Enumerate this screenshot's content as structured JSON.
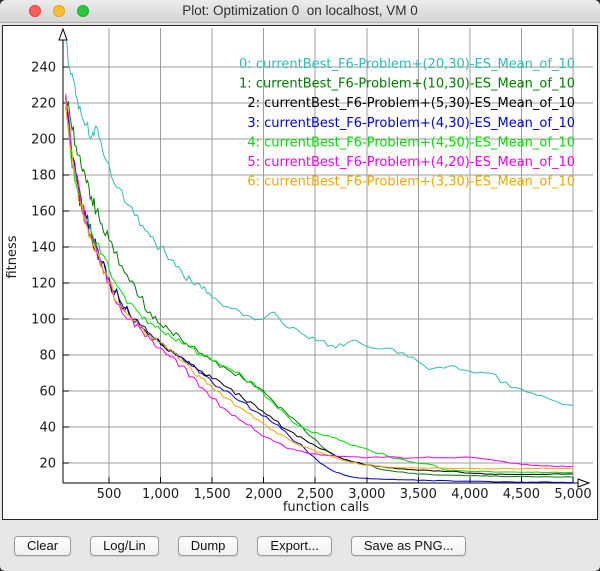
{
  "window": {
    "title": "Plot: Optimization 0  on localhost, VM 0"
  },
  "chart_data": {
    "type": "line",
    "title": "",
    "xlabel": "function calls",
    "ylabel": "fitness",
    "xlim": [
      50,
      5100
    ],
    "ylim": [
      9,
      260
    ],
    "grid": true,
    "grid_color": "#9d9d9d",
    "background": "#ffffff",
    "legend_position": "top-right",
    "xticks": [
      500,
      1000,
      1500,
      2000,
      2500,
      3000,
      3500,
      4000,
      4500,
      5000
    ],
    "xtick_labels": [
      "500",
      "1,000",
      "1,500",
      "2,000",
      "2,500",
      "3,000",
      "3,500",
      "4,000",
      "4,500",
      "5,000"
    ],
    "yticks": [
      20,
      40,
      60,
      80,
      100,
      120,
      140,
      160,
      180,
      200,
      220,
      240
    ],
    "x": [
      80,
      130,
      180,
      230,
      280,
      330,
      380,
      430,
      500,
      600,
      700,
      800,
      900,
      1000,
      1100,
      1200,
      1300,
      1400,
      1500,
      1650,
      1800,
      1950,
      2100,
      2250,
      2400,
      2550,
      2700,
      2850,
      3000,
      3200,
      3400,
      3600,
      3800,
      4000,
      4200,
      4400,
      4600,
      4800,
      5000
    ],
    "series": [
      {
        "name": "0: currentBest_F6-Problem+(20,30)-ES_Mean_of_10",
        "color": "#2fbcb3",
        "values": [
          255,
          236,
          224,
          214,
          208,
          201,
          207,
          196,
          186,
          173,
          163,
          152,
          146,
          140,
          133,
          127,
          121,
          117,
          112,
          107,
          102,
          100,
          104,
          95,
          91,
          88,
          84,
          88,
          85,
          84,
          79,
          72,
          74,
          71,
          70,
          62,
          59,
          55,
          52
        ]
      },
      {
        "name": "1: currentBest_F6-Problem+(10,30)-ES_Mean_of_10",
        "color": "#017a01",
        "values": [
          224,
          210,
          196,
          185,
          176,
          168,
          160,
          153,
          144,
          130,
          121,
          112,
          104,
          97,
          93,
          89,
          85,
          81,
          77,
          72,
          67,
          62,
          54,
          46,
          38,
          30,
          24,
          21,
          19,
          16,
          14.5,
          13.8,
          13.4,
          13,
          12.8,
          12.6,
          12.5,
          12.4,
          12.3
        ]
      },
      {
        "name": "2: currentBest_F6-Problem+(5,30)-ES_Mean_of_10",
        "color": "#000000",
        "values": [
          221,
          196,
          178,
          164,
          153,
          145,
          138,
          131,
          122,
          110,
          102,
          96,
          91,
          86,
          82,
          79,
          75,
          71,
          67,
          62,
          56,
          50,
          44,
          38,
          33,
          28,
          24,
          21,
          19,
          17.5,
          16.5,
          16,
          15.5,
          14.5,
          14,
          13.8,
          13.9,
          14,
          14
        ]
      },
      {
        "name": "3: currentBest_F6-Problem+(4,30)-ES_Mean_of_10",
        "color": "#0000dd",
        "values": [
          223,
          199,
          181,
          167,
          156,
          147,
          140,
          132,
          123,
          111,
          103,
          97,
          92,
          87,
          83,
          79,
          74,
          70,
          65,
          60,
          54,
          48,
          42,
          35,
          28,
          20,
          15,
          12.5,
          11.5,
          11,
          10.7,
          10.4,
          10.2,
          10,
          9.8,
          9.6,
          9.5,
          9.4,
          9.3
        ]
      },
      {
        "name": "4: currentBest_F6-Problem+(4,50)-ES_Mean_of_10",
        "color": "#00dd00",
        "values": [
          218,
          192,
          175,
          163,
          154,
          148,
          142,
          136,
          128,
          117,
          109,
          103,
          98,
          94,
          90,
          87,
          84,
          80,
          77,
          73,
          68,
          61,
          53,
          45,
          39,
          36,
          34,
          30,
          28,
          24,
          21,
          19.5,
          16,
          15.5,
          15.2,
          15.1,
          15,
          15,
          15
        ]
      },
      {
        "name": "5: currentBest_F6-Problem+(4,20)-ES_Mean_of_10",
        "color": "#f000f0",
        "values": [
          225,
          197,
          179,
          165,
          154,
          146,
          138,
          130,
          121,
          108,
          100,
          95,
          89,
          84,
          79,
          74,
          68,
          62,
          56,
          49,
          43,
          37,
          32,
          28,
          26,
          24.5,
          24,
          23.5,
          23,
          23.5,
          22.8,
          23.5,
          23,
          23.4,
          22,
          20,
          18.8,
          18.4,
          18.2
        ]
      },
      {
        "name": "6: currentBest_F6-Problem+(3,30)-ES_Mean_of_10",
        "color": "#f0a800",
        "values": [
          222,
          194,
          177,
          163,
          152,
          144,
          137,
          129,
          120,
          109,
          102,
          96,
          91,
          87,
          82,
          77,
          72,
          67,
          62,
          56,
          50,
          44,
          38,
          33,
          29,
          26,
          23,
          20.5,
          19,
          17.8,
          17.4,
          17.2,
          17.1,
          17,
          17,
          17,
          17,
          17,
          17
        ]
      }
    ]
  },
  "buttons": [
    {
      "label": "Clear"
    },
    {
      "label": "Log/Lin"
    },
    {
      "label": "Dump"
    },
    {
      "label": "Export..."
    },
    {
      "label": "Save as PNG..."
    }
  ]
}
